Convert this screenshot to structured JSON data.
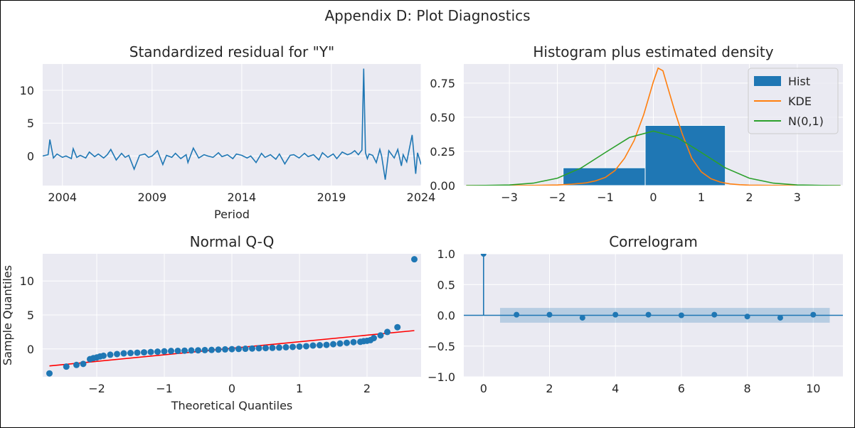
{
  "figure": {
    "title": "Appendix D: Plot Diagnostics"
  },
  "colors": {
    "axes_bg": "#eaeaf2",
    "grid": "#ffffff",
    "blue": "#1f77b4",
    "orange": "#ff7f0e",
    "green": "#2ca02c",
    "red": "#ff0000",
    "band": "#a6bddb",
    "text": "#262626"
  },
  "chart_data": [
    {
      "id": "residual",
      "type": "line",
      "title": "Standardized residual for \"Y\"",
      "xlabel": "Period",
      "ylabel": "",
      "x_tick_labels": [
        "2004",
        "2009",
        "2014",
        "2019",
        "2024"
      ],
      "x_ticks": [
        2004,
        2009,
        2014,
        2019,
        2024
      ],
      "y_ticks": [
        0,
        5,
        10
      ],
      "y_tick_labels": [
        "0",
        "5",
        "10"
      ],
      "xlim": [
        2002.9,
        2024.0
      ],
      "ylim": [
        -4.5,
        14.0
      ],
      "grid": true,
      "series": [
        {
          "x": [
            2002.9,
            2003.2,
            2003.3,
            2003.5,
            2003.7,
            2004.0,
            2004.2,
            2004.5,
            2004.6,
            2004.8,
            2005.0,
            2005.3,
            2005.5,
            2005.8,
            2006.0,
            2006.3,
            2006.5,
            2006.7,
            2007.0,
            2007.3,
            2007.5,
            2007.7,
            2008.0,
            2008.3,
            2008.6,
            2008.8,
            2009.0,
            2009.3,
            2009.6,
            2009.8,
            2010.1,
            2010.3,
            2010.6,
            2010.9,
            2011.0,
            2011.3,
            2011.6,
            2011.9,
            2012.1,
            2012.4,
            2012.7,
            2012.9,
            2013.2,
            2013.5,
            2013.7,
            2014.0,
            2014.3,
            2014.5,
            2014.8,
            2015.1,
            2015.3,
            2015.6,
            2015.9,
            2016.1,
            2016.4,
            2016.7,
            2016.9,
            2017.2,
            2017.5,
            2017.7,
            2018.0,
            2018.3,
            2018.5,
            2018.8,
            2019.1,
            2019.3,
            2019.6,
            2019.9,
            2020.1,
            2020.3,
            2020.5,
            2020.7,
            2020.8,
            2020.9,
            2021.0,
            2021.1,
            2021.3,
            2021.5,
            2021.7,
            2021.8,
            2022.0,
            2022.2,
            2022.5,
            2022.7,
            2022.9,
            2023.0,
            2023.2,
            2023.5,
            2023.7,
            2023.8,
            2024.0
          ],
          "y": [
            0.0,
            0.2,
            2.5,
            -0.3,
            0.3,
            -0.2,
            0.0,
            -0.4,
            1.1,
            -0.2,
            0.1,
            -0.3,
            0.6,
            -0.1,
            0.3,
            -0.3,
            0.2,
            1.0,
            -0.6,
            0.4,
            -0.2,
            0.1,
            -2.0,
            0.1,
            0.3,
            -0.2,
            0.0,
            0.8,
            -1.3,
            0.1,
            -0.2,
            0.4,
            -0.4,
            0.2,
            -1.0,
            1.2,
            -0.3,
            0.2,
            0.0,
            -0.2,
            0.5,
            -0.1,
            0.2,
            -0.4,
            0.3,
            0.1,
            -0.3,
            0.0,
            -1.0,
            0.4,
            -0.2,
            0.2,
            -0.5,
            0.3,
            -1.2,
            0.1,
            0.2,
            -0.3,
            0.4,
            -0.1,
            0.2,
            -0.6,
            0.5,
            -0.2,
            0.3,
            -0.4,
            0.6,
            0.2,
            0.4,
            0.8,
            0.2,
            0.9,
            13.3,
            0.5,
            -0.4,
            0.3,
            0.1,
            -1.0,
            1.0,
            0.0,
            -3.6,
            0.8,
            -0.3,
            1.0,
            -1.5,
            0.2,
            -0.9,
            3.2,
            -2.7,
            0.5,
            -1.3
          ]
        }
      ]
    },
    {
      "id": "histogram",
      "type": "bar",
      "title": "Histogram plus estimated density",
      "xlabel": "",
      "ylabel": "",
      "x_ticks": [
        -3,
        -2,
        -1,
        0,
        1,
        2,
        3
      ],
      "x_tick_labels": [
        "−3",
        "−2",
        "−1",
        "0",
        "1",
        "2",
        "3"
      ],
      "y_ticks": [
        0.0,
        0.25,
        0.5,
        0.75
      ],
      "y_tick_labels": [
        "0.00",
        "0.25",
        "0.50",
        "0.75"
      ],
      "xlim": [
        -3.95,
        3.95
      ],
      "ylim": [
        0.0,
        0.89
      ],
      "grid": true,
      "legend": {
        "position": "top-right",
        "entries": [
          "Hist",
          "KDE",
          "N(0,1)"
        ]
      },
      "bins": [
        {
          "x0": -1.88,
          "x1": -0.17,
          "height": 0.13
        },
        {
          "x0": -0.17,
          "x1": 1.5,
          "height": 0.44
        }
      ],
      "series": [
        {
          "name": "KDE",
          "x": [
            -3.9,
            -3.0,
            -2.5,
            -2.0,
            -1.7,
            -1.4,
            -1.2,
            -1.0,
            -0.8,
            -0.6,
            -0.4,
            -0.2,
            -0.1,
            0.0,
            0.1,
            0.2,
            0.3,
            0.45,
            0.6,
            0.8,
            1.0,
            1.2,
            1.4,
            1.6,
            1.8,
            2.0,
            2.5,
            3.0,
            3.9
          ],
          "y": [
            0.0,
            0.0,
            0.001,
            0.004,
            0.01,
            0.02,
            0.035,
            0.06,
            0.11,
            0.2,
            0.33,
            0.52,
            0.64,
            0.76,
            0.86,
            0.84,
            0.72,
            0.54,
            0.38,
            0.2,
            0.1,
            0.05,
            0.025,
            0.012,
            0.006,
            0.003,
            0.001,
            0.0,
            0.0
          ]
        },
        {
          "name": "N(0,1)",
          "x": [
            -3.9,
            -3.5,
            -3.0,
            -2.5,
            -2.0,
            -1.5,
            -1.0,
            -0.5,
            0.0,
            0.5,
            1.0,
            1.5,
            2.0,
            2.5,
            3.0,
            3.5,
            3.9
          ],
          "y": [
            0.0002,
            0.0009,
            0.0044,
            0.0175,
            0.054,
            0.1295,
            0.242,
            0.352,
            0.399,
            0.352,
            0.242,
            0.1295,
            0.054,
            0.0175,
            0.0044,
            0.0009,
            0.0002
          ]
        }
      ]
    },
    {
      "id": "qq",
      "type": "scatter",
      "title": "Normal Q-Q",
      "xlabel": "Theoretical Quantiles",
      "ylabel": "Sample Quantiles",
      "x_ticks": [
        -2,
        -1,
        0,
        1,
        2
      ],
      "x_tick_labels": [
        "−2",
        "−1",
        "0",
        "1",
        "2"
      ],
      "y_ticks": [
        0,
        5,
        10
      ],
      "y_tick_labels": [
        "0",
        "5",
        "10"
      ],
      "xlim": [
        -2.8,
        2.8
      ],
      "ylim": [
        -4.1,
        14.0
      ],
      "grid": true,
      "points": {
        "x": [
          -2.7,
          -2.45,
          -2.3,
          -2.2,
          -2.1,
          -2.05,
          -2.0,
          -1.95,
          -1.9,
          -1.8,
          -1.7,
          -1.6,
          -1.5,
          -1.4,
          -1.3,
          -1.2,
          -1.1,
          -1.0,
          -0.9,
          -0.8,
          -0.7,
          -0.6,
          -0.5,
          -0.4,
          -0.3,
          -0.2,
          -0.1,
          0.0,
          0.1,
          0.2,
          0.3,
          0.4,
          0.5,
          0.6,
          0.7,
          0.8,
          0.9,
          1.0,
          1.1,
          1.2,
          1.3,
          1.4,
          1.5,
          1.6,
          1.7,
          1.8,
          1.9,
          1.95,
          2.0,
          2.05,
          2.1,
          2.2,
          2.3,
          2.45,
          2.7
        ],
        "y": [
          -3.6,
          -2.6,
          -2.35,
          -2.2,
          -1.5,
          -1.35,
          -1.25,
          -1.1,
          -1.0,
          -0.85,
          -0.75,
          -0.65,
          -0.6,
          -0.55,
          -0.5,
          -0.45,
          -0.4,
          -0.35,
          -0.3,
          -0.28,
          -0.25,
          -0.22,
          -0.2,
          -0.17,
          -0.14,
          -0.1,
          -0.06,
          -0.03,
          0.0,
          0.03,
          0.06,
          0.1,
          0.13,
          0.16,
          0.2,
          0.25,
          0.3,
          0.35,
          0.4,
          0.5,
          0.55,
          0.6,
          0.7,
          0.8,
          0.9,
          1.0,
          1.05,
          1.15,
          1.2,
          1.3,
          1.6,
          2.0,
          2.5,
          3.2,
          13.2
        ]
      },
      "reference_line": {
        "x": [
          -2.7,
          2.7
        ],
        "y": [
          -2.5,
          2.7
        ]
      }
    },
    {
      "id": "correlogram",
      "type": "scatter",
      "title": "Correlogram",
      "xlabel": "",
      "ylabel": "",
      "x_ticks": [
        0,
        2,
        4,
        6,
        8,
        10
      ],
      "x_tick_labels": [
        "0",
        "2",
        "4",
        "6",
        "8",
        "10"
      ],
      "y_ticks": [
        -1.0,
        -0.5,
        0.0,
        0.5,
        1.0
      ],
      "y_tick_labels": [
        "−1.0",
        "−0.5",
        "0.0",
        "0.5",
        "1.0"
      ],
      "xlim": [
        -0.6,
        10.9
      ],
      "ylim": [
        -1.0,
        1.0
      ],
      "grid": true,
      "lags": [
        0,
        1,
        2,
        3,
        4,
        5,
        6,
        7,
        8,
        9,
        10
      ],
      "acf": [
        1.0,
        0.01,
        0.01,
        -0.04,
        0.01,
        0.01,
        0.0,
        0.01,
        -0.02,
        -0.04,
        0.01
      ],
      "confidence_band": {
        "x": [
          0.5,
          10.5
        ],
        "lower": -0.12,
        "upper": 0.12
      }
    }
  ]
}
